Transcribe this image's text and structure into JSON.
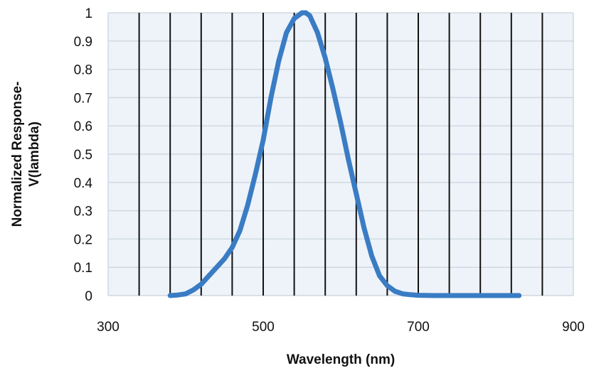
{
  "chart_data": {
    "type": "line",
    "title": "",
    "xlabel": "Wavelength (nm)",
    "ylabel_lines": [
      "Normalized Response-",
      "V(lambda)"
    ],
    "xlim": [
      300,
      900
    ],
    "ylim": [
      0,
      1
    ],
    "x_ticks": [
      300,
      500,
      700,
      900
    ],
    "y_ticks": [
      0,
      0.1,
      0.2,
      0.3,
      0.4,
      0.5,
      0.6,
      0.7,
      0.8,
      0.9,
      1
    ],
    "x_tick_labels": [
      "300",
      "500",
      "700",
      "900"
    ],
    "y_tick_labels": [
      "0",
      "0.1",
      "0.2",
      "0.3",
      "0.4",
      "0.5",
      "0.6",
      "0.7",
      "0.8",
      "0.9",
      "1"
    ],
    "x_gridlines": [
      340,
      380,
      420,
      460,
      500,
      540,
      580,
      620,
      660,
      700,
      740,
      780,
      820,
      860
    ],
    "grid": true,
    "legend": "none",
    "colors": {
      "line": "#3a7cc4",
      "plot_bg": "#eef3f9",
      "minor_grid": "#cfd8e2",
      "major_grid": "#111111"
    },
    "series": [
      {
        "x": [
          380,
          390,
          400,
          410,
          420,
          430,
          440,
          450,
          460,
          470,
          480,
          490,
          500,
          510,
          520,
          530,
          540,
          550,
          555,
          560,
          570,
          580,
          590,
          600,
          610,
          620,
          630,
          640,
          650,
          660,
          670,
          680,
          690,
          700,
          720,
          750,
          800,
          830
        ],
        "y": [
          0.0,
          0.002,
          0.006,
          0.02,
          0.04,
          0.07,
          0.1,
          0.13,
          0.17,
          0.23,
          0.32,
          0.43,
          0.55,
          0.7,
          0.83,
          0.93,
          0.98,
          1.0,
          1.0,
          0.99,
          0.93,
          0.84,
          0.73,
          0.61,
          0.48,
          0.36,
          0.24,
          0.14,
          0.07,
          0.035,
          0.015,
          0.006,
          0.003,
          0.001,
          0.0,
          0.0,
          0.0,
          0.0
        ]
      }
    ]
  }
}
